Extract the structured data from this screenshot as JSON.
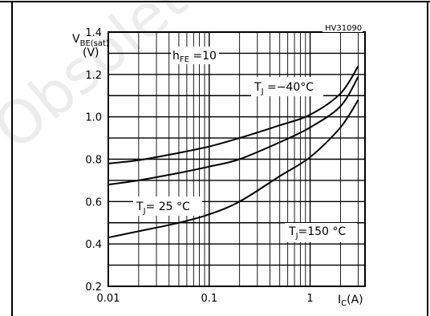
{
  "chart_data": {
    "type": "line",
    "figure_code": "HV31090",
    "watermark": "Obsolete Product",
    "ylabel_main": "V",
    "ylabel_sub": "BE(sat)",
    "ylabel_unit": "(V)",
    "xlabel_main": "I",
    "xlabel_sub": "C",
    "xlabel_unit": "(A)",
    "condition_main": "h",
    "condition_sub": "FE",
    "condition_value": " =10",
    "xscale": "log",
    "xlim": [
      0.01,
      3.5
    ],
    "ylim": [
      0.2,
      1.4
    ],
    "xticks": [
      0.01,
      0.1,
      1
    ],
    "xtick_labels": [
      "0.01",
      "0.1",
      "1"
    ],
    "yticks": [
      0.2,
      0.4,
      0.6,
      0.8,
      1.0,
      1.2,
      1.4
    ],
    "ytick_labels": [
      "0.2",
      "0.4",
      "0.6",
      "0.8",
      "1.0",
      "1.2",
      "1.4"
    ],
    "grid": true,
    "series": [
      {
        "label_main": "T",
        "label_sub": "J",
        "label_value": " =−40°C",
        "x": [
          0.01,
          0.02,
          0.05,
          0.1,
          0.2,
          0.5,
          1,
          2,
          3
        ],
        "y": [
          0.78,
          0.795,
          0.83,
          0.86,
          0.9,
          0.96,
          1.01,
          1.11,
          1.24
        ]
      },
      {
        "label_main": "T",
        "label_sub": "J",
        "label_value": "= 25 °C",
        "x": [
          0.01,
          0.02,
          0.05,
          0.1,
          0.2,
          0.5,
          1,
          2,
          3
        ],
        "y": [
          0.68,
          0.7,
          0.735,
          0.765,
          0.8,
          0.88,
          0.95,
          1.05,
          1.19
        ]
      },
      {
        "label_main": "T",
        "label_sub": "J",
        "label_value": "=150 °C",
        "x": [
          0.01,
          0.02,
          0.05,
          0.1,
          0.2,
          0.5,
          1,
          2,
          3
        ],
        "y": [
          0.43,
          0.46,
          0.5,
          0.54,
          0.6,
          0.72,
          0.81,
          0.95,
          1.08
        ]
      }
    ]
  }
}
